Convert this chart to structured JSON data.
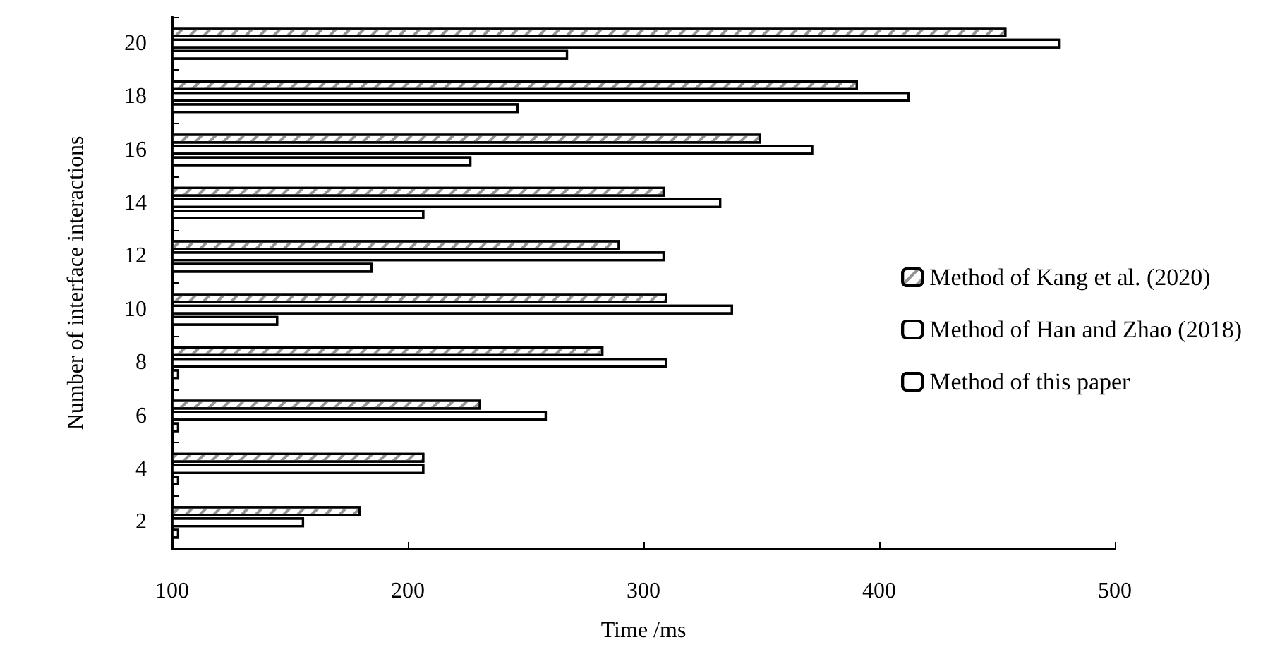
{
  "chart_data": {
    "type": "bar",
    "orientation": "horizontal",
    "xlabel": "Time /ms",
    "ylabel": "Number of interface interactions",
    "categories": [
      "20",
      "18",
      "16",
      "14",
      "12",
      "10",
      "8",
      "6",
      "4",
      "2"
    ],
    "series": [
      {
        "name": "Method of Kang et al. (2020)",
        "color": "#ffffff",
        "values": [
          454,
          391,
          350,
          309,
          290,
          310,
          283,
          231,
          207,
          180
        ]
      },
      {
        "name": "Method of Han and Zhao (2018)",
        "color": "#ffffff",
        "values": [
          477,
          413,
          372,
          333,
          309,
          338,
          310,
          259,
          207,
          156
        ]
      },
      {
        "name": "Method of this paper",
        "color": "#ffffff",
        "values": [
          268,
          247,
          227,
          207,
          185,
          145,
          103,
          103,
          103,
          103
        ]
      }
    ],
    "xlim": [
      100,
      500
    ],
    "xticks": [
      100,
      200,
      300,
      400,
      500
    ],
    "grid": false,
    "legend": "right"
  }
}
